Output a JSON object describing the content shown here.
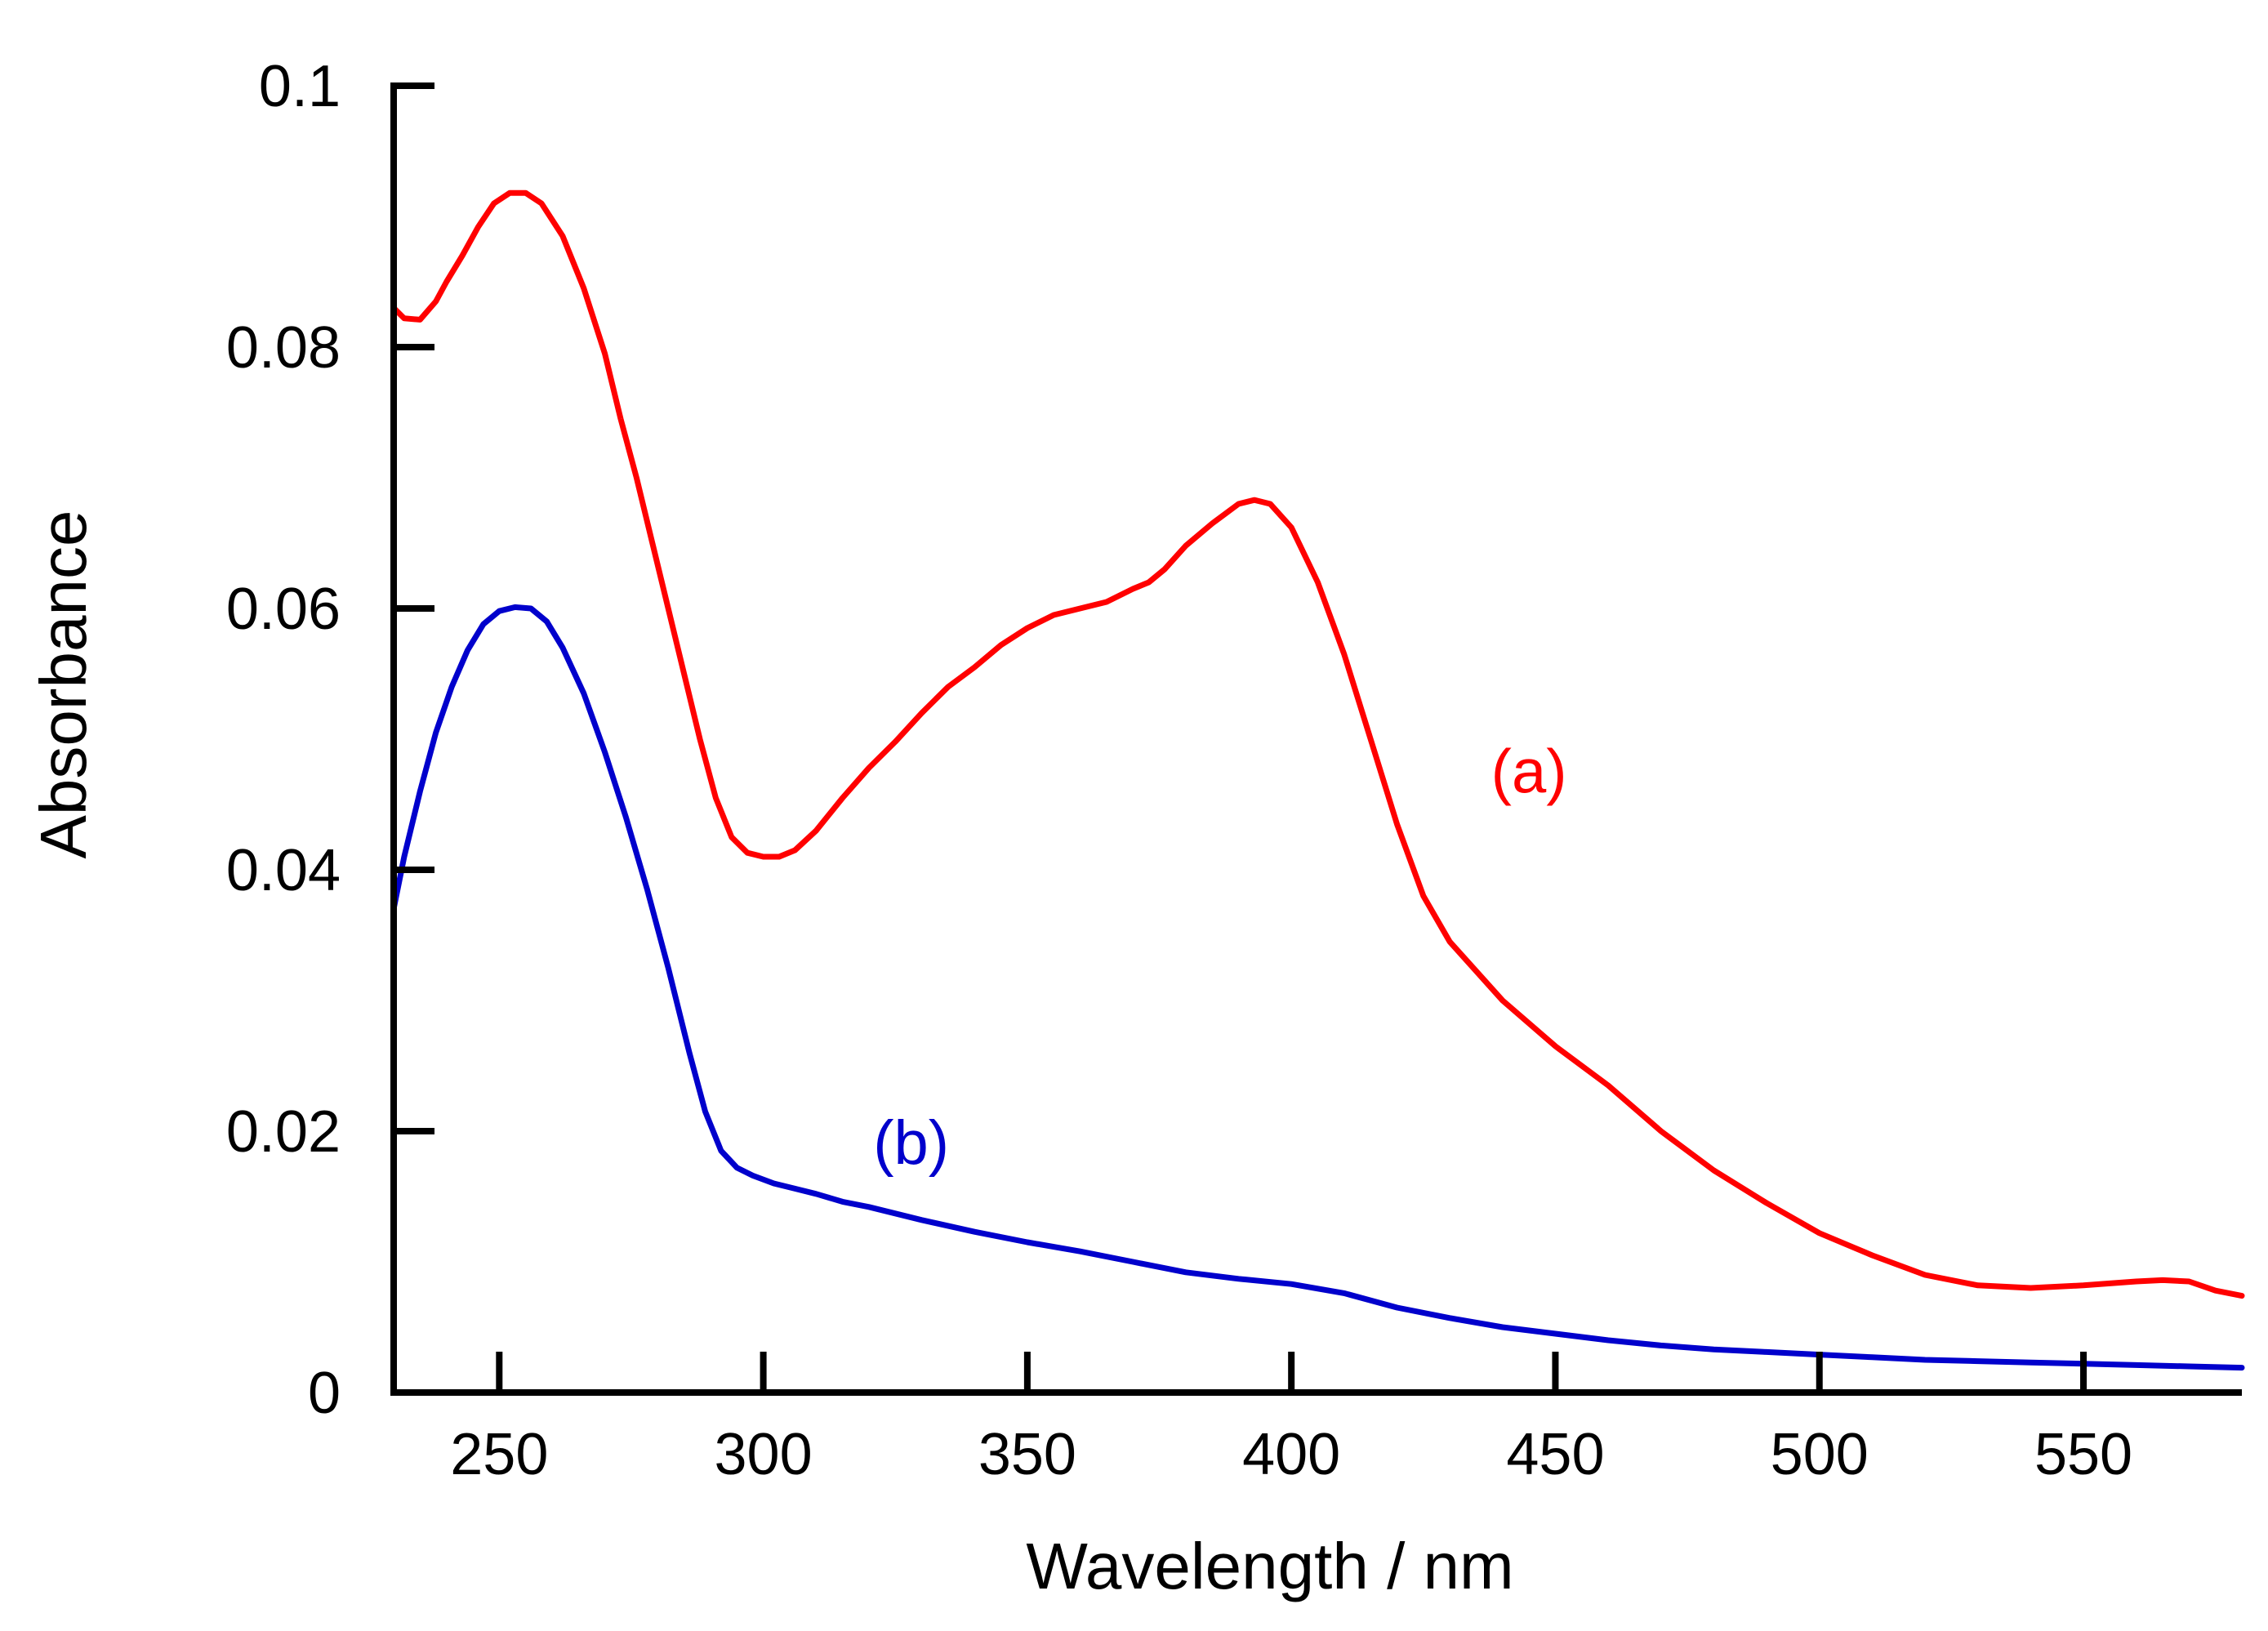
{
  "chart_data": {
    "type": "line",
    "xlabel": "Wavelength / nm",
    "ylabel": "Absorbance",
    "xlim": [
      230,
      580
    ],
    "ylim": [
      0,
      0.1
    ],
    "x_ticks": [
      250,
      300,
      350,
      400,
      450,
      500,
      550
    ],
    "x_tick_labels": [
      "250",
      "300",
      "350",
      "400",
      "450",
      "500",
      "550"
    ],
    "y_ticks": [
      0,
      0.02,
      0.04,
      0.06,
      0.08,
      0.1
    ],
    "y_tick_labels": [
      "0",
      "0.02",
      "0.04",
      "0.06",
      "0.08",
      "0.1"
    ],
    "grid": false,
    "series": [
      {
        "name": "(a)",
        "color": "#ff0000",
        "x": [
          230,
          232,
          235,
          238,
          240,
          243,
          246,
          249,
          252,
          255,
          258,
          262,
          266,
          270,
          273,
          276,
          279,
          282,
          285,
          288,
          291,
          294,
          297,
          300,
          303,
          306,
          310,
          315,
          320,
          325,
          330,
          335,
          340,
          345,
          350,
          355,
          360,
          365,
          370,
          373,
          376,
          380,
          385,
          390,
          393,
          396,
          400,
          405,
          410,
          415,
          420,
          425,
          430,
          440,
          450,
          460,
          470,
          480,
          490,
          500,
          510,
          520,
          530,
          540,
          550,
          560,
          565,
          570,
          575,
          580
        ],
        "y": [
          0.083,
          0.0822,
          0.0821,
          0.0835,
          0.085,
          0.087,
          0.0892,
          0.091,
          0.0918,
          0.0918,
          0.091,
          0.0885,
          0.0845,
          0.0795,
          0.0745,
          0.07,
          0.065,
          0.06,
          0.055,
          0.05,
          0.0455,
          0.0425,
          0.0413,
          0.041,
          0.041,
          0.0415,
          0.043,
          0.0455,
          0.0478,
          0.0498,
          0.052,
          0.054,
          0.0555,
          0.0572,
          0.0585,
          0.0595,
          0.06,
          0.0605,
          0.0615,
          0.062,
          0.063,
          0.0648,
          0.0665,
          0.068,
          0.0683,
          0.068,
          0.0662,
          0.062,
          0.0565,
          0.05,
          0.0435,
          0.038,
          0.0345,
          0.03,
          0.0265,
          0.0235,
          0.02,
          0.017,
          0.0145,
          0.0122,
          0.0105,
          0.009,
          0.0082,
          0.008,
          0.0082,
          0.0085,
          0.0086,
          0.0085,
          0.0078,
          0.0074
        ]
      },
      {
        "name": "(b)",
        "color": "#0000cc",
        "x": [
          230,
          232,
          235,
          238,
          241,
          244,
          247,
          250,
          253,
          256,
          259,
          262,
          266,
          270,
          274,
          278,
          282,
          286,
          289,
          292,
          295,
          298,
          302,
          306,
          310,
          315,
          320,
          330,
          340,
          350,
          360,
          370,
          380,
          390,
          400,
          410,
          420,
          430,
          440,
          450,
          460,
          470,
          480,
          490,
          500,
          510,
          520,
          530,
          540,
          550,
          560,
          570,
          580
        ],
        "y": [
          0.037,
          0.041,
          0.046,
          0.0505,
          0.054,
          0.0568,
          0.0588,
          0.0598,
          0.0601,
          0.06,
          0.059,
          0.057,
          0.0535,
          0.049,
          0.044,
          0.0385,
          0.0325,
          0.026,
          0.0215,
          0.0185,
          0.0172,
          0.0166,
          0.016,
          0.0156,
          0.0152,
          0.0146,
          0.0142,
          0.0132,
          0.0123,
          0.0115,
          0.0108,
          0.01,
          0.0092,
          0.0087,
          0.0083,
          0.0076,
          0.0065,
          0.0057,
          0.005,
          0.0045,
          0.004,
          0.0036,
          0.0033,
          0.0031,
          0.0029,
          0.0027,
          0.0025,
          0.0024,
          0.0023,
          0.0022,
          0.0021,
          0.002,
          0.0019
        ]
      }
    ]
  }
}
